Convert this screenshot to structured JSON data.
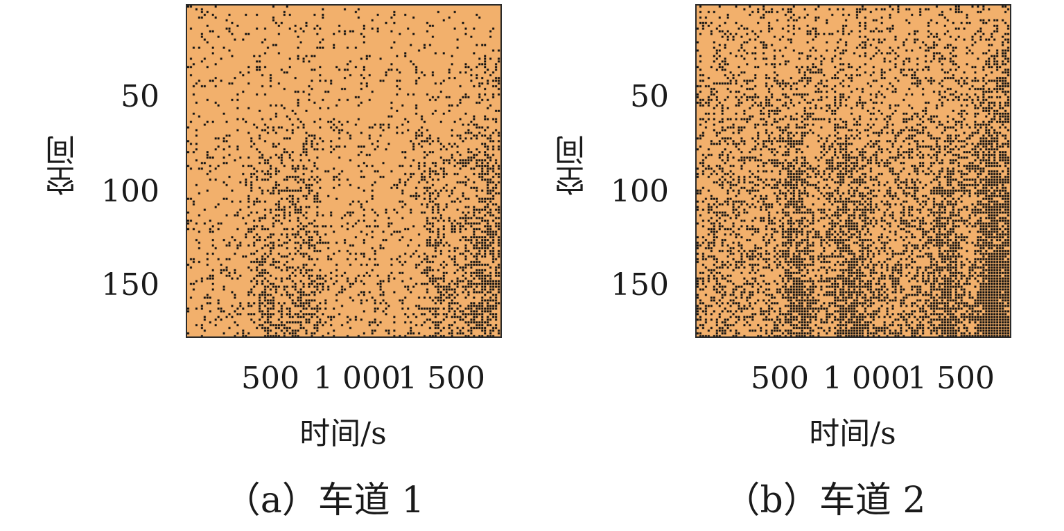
{
  "chart_data": [
    {
      "type": "heatmap",
      "caption": "（a）车道 1",
      "xlabel": "时间/s",
      "ylabel": "空间",
      "xticks": [
        "500",
        "1 000",
        "1 500"
      ],
      "yticks": [
        "50",
        "100",
        "150"
      ],
      "xlim": [
        0,
        1800
      ],
      "ylim": [
        0,
        175
      ],
      "y_inverted": true,
      "colors": {
        "background": "#f2b06c",
        "dots": "#111111"
      },
      "density_description_values": {
        "base": 0.12,
        "dense_streaks_center_x": [
          450,
          580,
          720,
          1450,
          1620,
          1750
        ],
        "streak_density": 0.35
      }
    },
    {
      "type": "heatmap",
      "caption": "（b）车道 2",
      "xlabel": "时间/s",
      "ylabel": "空间",
      "xticks": [
        "500",
        "1 000",
        "1 500"
      ],
      "yticks": [
        "50",
        "100",
        "150"
      ],
      "xlim": [
        0,
        1800
      ],
      "ylim": [
        0,
        175
      ],
      "y_inverted": true,
      "colors": {
        "background": "#f2b06c",
        "dots": "#111111"
      },
      "density_description_values": {
        "base": 0.32,
        "dense_streaks_center_x": [
          600,
          900,
          1450,
          1700
        ],
        "streak_density": 0.5
      }
    }
  ]
}
